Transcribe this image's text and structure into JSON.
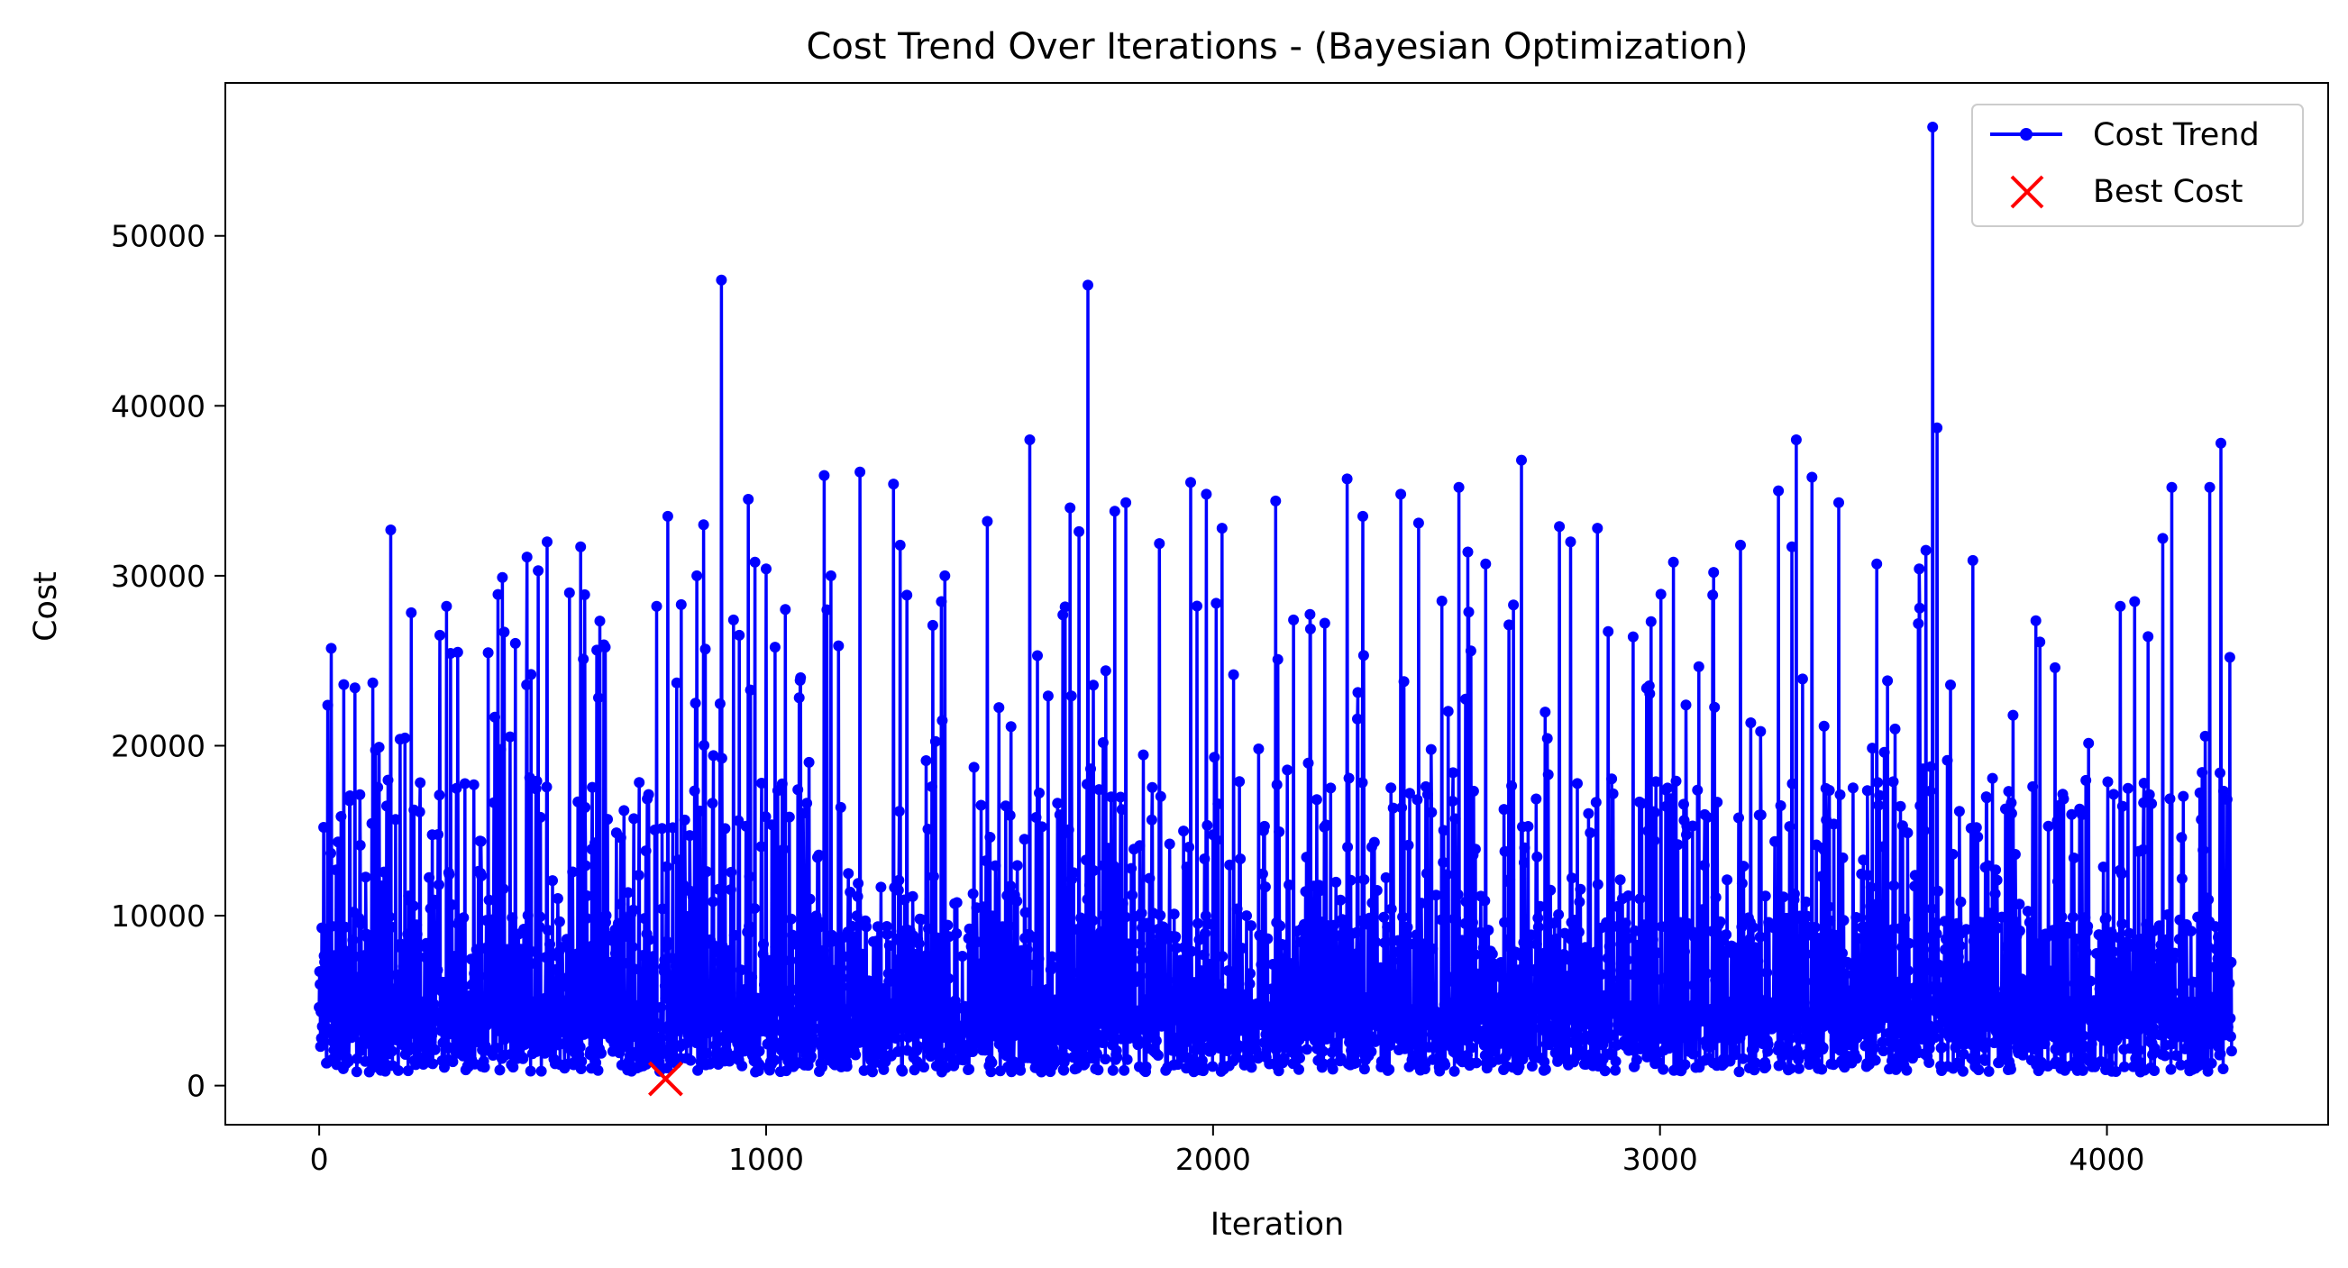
{
  "chart_data": {
    "type": "line",
    "title": "Cost Trend Over Iterations - (Bayesian Optimization)",
    "xlabel": "Iteration",
    "ylabel": "Cost",
    "xlim": [
      -210,
      4495
    ],
    "ylim": [
      -2300,
      59000
    ],
    "xticks": [
      0,
      1000,
      2000,
      3000,
      4000
    ],
    "xtick_labels": [
      "0",
      "1000",
      "2000",
      "3000",
      "4000"
    ],
    "yticks": [
      0,
      10000,
      20000,
      30000,
      40000,
      50000
    ],
    "ytick_labels": [
      "0",
      "10000",
      "20000",
      "30000",
      "40000",
      "50000"
    ],
    "grid": false,
    "legend_position": "top-right",
    "n_iterations": 4280,
    "series": [
      {
        "name": "Cost Trend",
        "color": "#0000ff",
        "marker": "circle",
        "description_of_samples": "noisy per-iteration cost, mostly 1000-10000 with frequent spikes",
        "notable_peaks": [
          {
            "x": 10,
            "y": 15200
          },
          {
            "x": 55,
            "y": 23600
          },
          {
            "x": 80,
            "y": 23400
          },
          {
            "x": 120,
            "y": 23700
          },
          {
            "x": 160,
            "y": 32700
          },
          {
            "x": 270,
            "y": 26500
          },
          {
            "x": 285,
            "y": 28200
          },
          {
            "x": 310,
            "y": 25500
          },
          {
            "x": 400,
            "y": 28900
          },
          {
            "x": 410,
            "y": 29900
          },
          {
            "x": 465,
            "y": 31100
          },
          {
            "x": 490,
            "y": 30300
          },
          {
            "x": 510,
            "y": 32000
          },
          {
            "x": 560,
            "y": 29000
          },
          {
            "x": 585,
            "y": 31700
          },
          {
            "x": 640,
            "y": 25800
          },
          {
            "x": 755,
            "y": 28200
          },
          {
            "x": 780,
            "y": 33500
          },
          {
            "x": 800,
            "y": 23700
          },
          {
            "x": 845,
            "y": 30000
          },
          {
            "x": 860,
            "y": 33000
          },
          {
            "x": 900,
            "y": 47400
          },
          {
            "x": 940,
            "y": 26500
          },
          {
            "x": 960,
            "y": 34500
          },
          {
            "x": 975,
            "y": 30800
          },
          {
            "x": 1000,
            "y": 30400
          },
          {
            "x": 1020,
            "y": 25800
          },
          {
            "x": 1130,
            "y": 35900
          },
          {
            "x": 1145,
            "y": 30000
          },
          {
            "x": 1210,
            "y": 36100
          },
          {
            "x": 1285,
            "y": 35400
          },
          {
            "x": 1300,
            "y": 31800
          },
          {
            "x": 1400,
            "y": 30000
          },
          {
            "x": 1495,
            "y": 33200
          },
          {
            "x": 1590,
            "y": 38000
          },
          {
            "x": 1680,
            "y": 34000
          },
          {
            "x": 1700,
            "y": 32600
          },
          {
            "x": 1720,
            "y": 47100
          },
          {
            "x": 1780,
            "y": 33800
          },
          {
            "x": 1805,
            "y": 34300
          },
          {
            "x": 1880,
            "y": 31900
          },
          {
            "x": 1950,
            "y": 35500
          },
          {
            "x": 1985,
            "y": 34800
          },
          {
            "x": 2020,
            "y": 32800
          },
          {
            "x": 2140,
            "y": 34400
          },
          {
            "x": 2180,
            "y": 27400
          },
          {
            "x": 2300,
            "y": 35700
          },
          {
            "x": 2335,
            "y": 33500
          },
          {
            "x": 2420,
            "y": 34800
          },
          {
            "x": 2460,
            "y": 33100
          },
          {
            "x": 2550,
            "y": 35200
          },
          {
            "x": 2570,
            "y": 31400
          },
          {
            "x": 2610,
            "y": 30700
          },
          {
            "x": 2690,
            "y": 36800
          },
          {
            "x": 2775,
            "y": 32900
          },
          {
            "x": 2800,
            "y": 32000
          },
          {
            "x": 2860,
            "y": 32800
          },
          {
            "x": 2980,
            "y": 27300
          },
          {
            "x": 3030,
            "y": 30800
          },
          {
            "x": 3120,
            "y": 30200
          },
          {
            "x": 3180,
            "y": 31800
          },
          {
            "x": 3265,
            "y": 35000
          },
          {
            "x": 3295,
            "y": 31700
          },
          {
            "x": 3305,
            "y": 38000
          },
          {
            "x": 3340,
            "y": 35800
          },
          {
            "x": 3400,
            "y": 34300
          },
          {
            "x": 3485,
            "y": 30700
          },
          {
            "x": 3580,
            "y": 30400
          },
          {
            "x": 3595,
            "y": 31500
          },
          {
            "x": 3610,
            "y": 56400
          },
          {
            "x": 3620,
            "y": 38700
          },
          {
            "x": 3700,
            "y": 30900
          },
          {
            "x": 3850,
            "y": 26100
          },
          {
            "x": 4030,
            "y": 28200
          },
          {
            "x": 4125,
            "y": 32200
          },
          {
            "x": 4145,
            "y": 35200
          },
          {
            "x": 4230,
            "y": 35200
          },
          {
            "x": 4255,
            "y": 37800
          },
          {
            "x": 4275,
            "y": 25200
          }
        ]
      },
      {
        "name": "Best Cost",
        "color": "#ff0000",
        "marker": "x",
        "points": [
          {
            "x": 775,
            "y": 400
          }
        ]
      }
    ]
  }
}
